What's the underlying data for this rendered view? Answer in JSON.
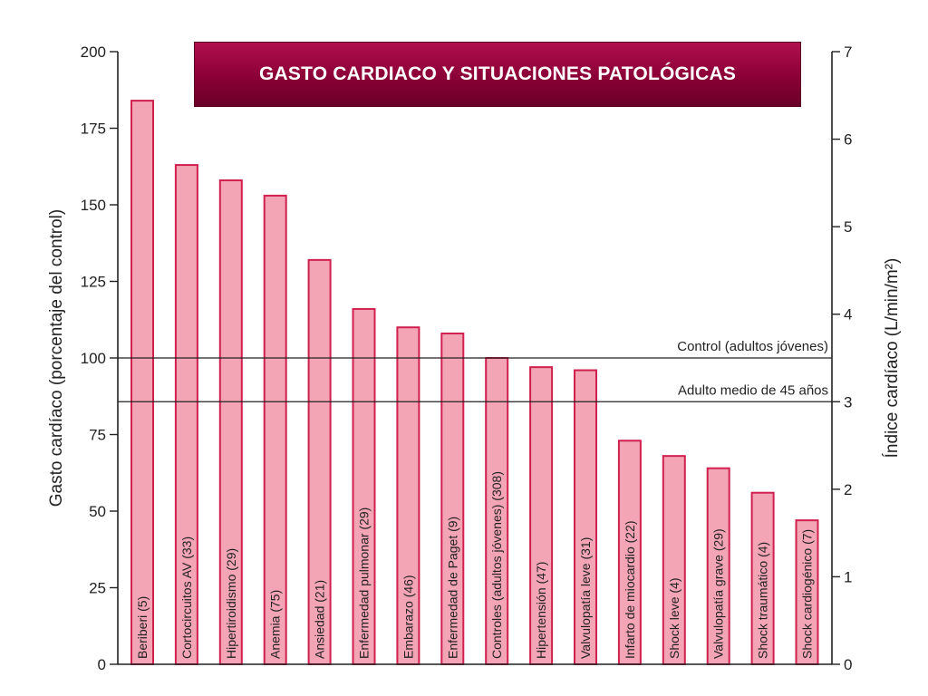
{
  "colors": {
    "bar_fill": "#f3a4b5",
    "bar_stroke": "#d0204e",
    "axis": "#222222",
    "title_bg": "#8a0036",
    "title_text": "#ffffff"
  },
  "chart_data": {
    "type": "bar",
    "title": "GASTO CARDIACO Y SITUACIONES PATOLÓGICAS",
    "ylabel": "Gasto cardíaco (porcentaje del control)",
    "y2label": "Índice cardíaco (L/min/m²)",
    "ylim": [
      0,
      200
    ],
    "y2lim": [
      0,
      7
    ],
    "yticks": [
      0,
      25,
      50,
      75,
      100,
      125,
      150,
      175,
      200
    ],
    "y2ticks": [
      0,
      1,
      2,
      3,
      4,
      5,
      6,
      7
    ],
    "categories": [
      "Beriberi (5)",
      "Cortocircuitos AV (33)",
      "Hipertiroidismo (29)",
      "Anemia (75)",
      "Ansiedad (21)",
      "Enfermedad pulmonar (29)",
      "Embarazo (46)",
      "Enfermedad de Paget (9)",
      "Controles (adultos jóvenes) (308)",
      "Hipertensión (47)",
      "Valvulopatía leve (31)",
      "Infarto de miocardio (22)",
      "Shock leve (4)",
      "Valvulopatía grave (29)",
      "Shock traumático (4)",
      "Shock cardiogénico (7)"
    ],
    "values": [
      184,
      163,
      158,
      153,
      132,
      116,
      110,
      108,
      100,
      97,
      96,
      73,
      68,
      64,
      56,
      47
    ],
    "reference_lines": [
      {
        "label": "Control (adultos jóvenes)",
        "value": 100
      },
      {
        "label": "Adulto medio de 45 años",
        "value": 3.0,
        "axis": "y2"
      }
    ],
    "grid": false,
    "legend": "none"
  }
}
